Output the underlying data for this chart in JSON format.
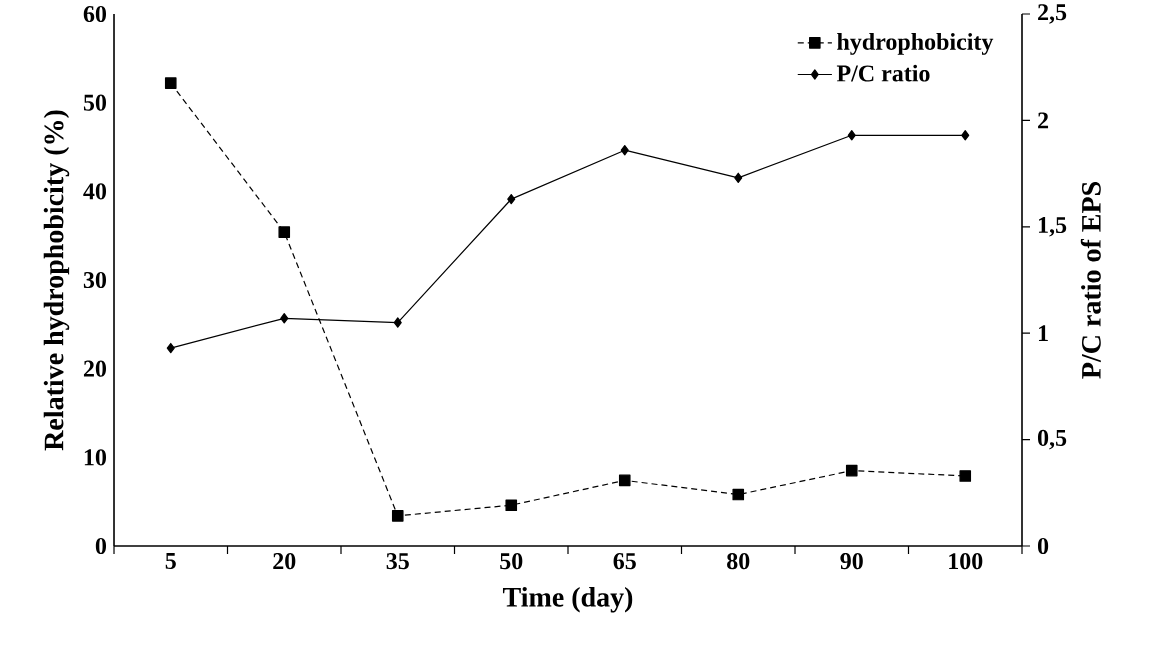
{
  "chart_data": {
    "type": "line",
    "xlabel": "Time (day)",
    "ylabel": "Relative hydrophobicity (%)",
    "y2label": "P/C ratio of EPS",
    "categories": [
      "5",
      "20",
      "35",
      "50",
      "65",
      "80",
      "90",
      "100"
    ],
    "series": [
      {
        "name": "hydrophobicity",
        "color": "#000000",
        "marker": "square",
        "line_style": "dashed",
        "values": [
          52.2,
          35.4,
          3.4,
          4.6,
          7.4,
          5.8,
          8.5,
          7.9
        ]
      },
      {
        "name": "P/C ratio",
        "color": "#000000",
        "marker": "diamond",
        "line_style": "solid",
        "axis": "y2",
        "values": [
          0.93,
          1.07,
          1.05,
          1.63,
          1.86,
          1.73,
          1.93,
          1.93
        ]
      }
    ],
    "ylim": [
      0,
      60
    ],
    "yticks": [
      0,
      10,
      20,
      30,
      40,
      50,
      60
    ],
    "y2lim": [
      0,
      2.5
    ],
    "y2ticks": [
      0,
      {
        "value": 0.5,
        "label": "0,5"
      },
      1,
      {
        "value": 1.5,
        "label": "1,5"
      },
      2,
      {
        "value": 2.5,
        "label": "2,5"
      }
    ],
    "grid": false,
    "legend": "top right"
  }
}
